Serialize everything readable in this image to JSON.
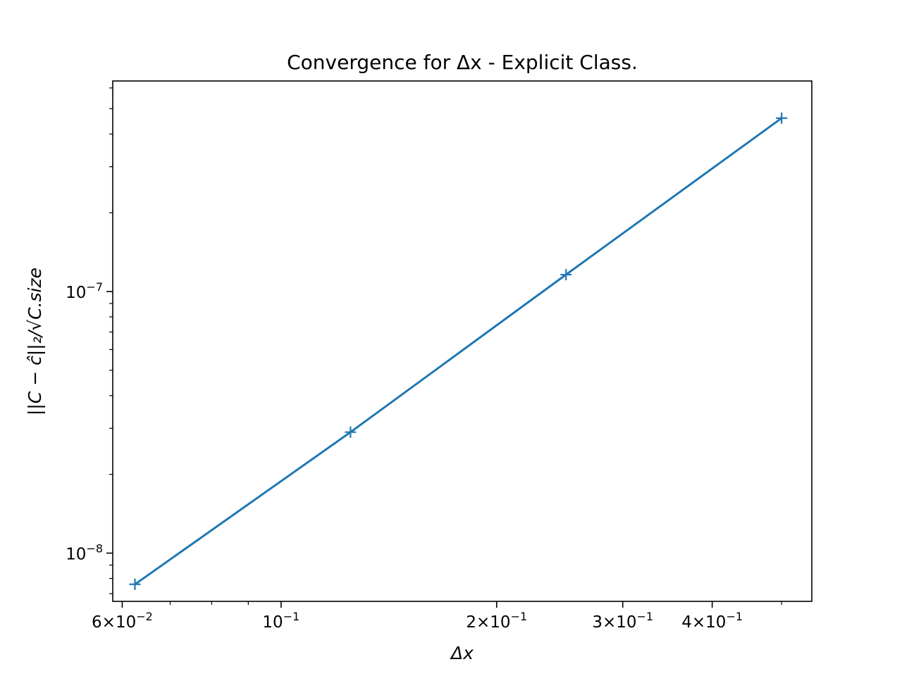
{
  "chart_data": {
    "type": "line",
    "title": "Convergence for Δx - Explicit Class.",
    "xlabel": "Δx",
    "ylabel": "||C − ĉ||₂/√C.size",
    "xscale": "log",
    "yscale": "log",
    "xlim": [
      0.0582,
      0.551
    ],
    "ylim": [
      6.54e-09,
      6.38e-07
    ],
    "grid": false,
    "x_tick_labels": [
      {
        "value": 0.06,
        "mantissa": "6",
        "exp": "−2"
      },
      {
        "value": 0.1,
        "mantissa": "",
        "exp": "−1"
      },
      {
        "value": 0.2,
        "mantissa": "2",
        "exp": "−1"
      },
      {
        "value": 0.3,
        "mantissa": "3",
        "exp": "−1"
      },
      {
        "value": 0.4,
        "mantissa": "4",
        "exp": "−1"
      }
    ],
    "y_tick_labels": [
      {
        "value": 1e-07,
        "exp": "−7"
      },
      {
        "value": 1e-08,
        "exp": "−8"
      }
    ],
    "series": [
      {
        "color": "#1f77b4",
        "marker": "+",
        "x": [
          0.0625,
          0.125,
          0.25,
          0.5
        ],
        "y": [
          7.6e-09,
          2.9e-08,
          1.16e-07,
          4.6e-07
        ]
      }
    ]
  }
}
